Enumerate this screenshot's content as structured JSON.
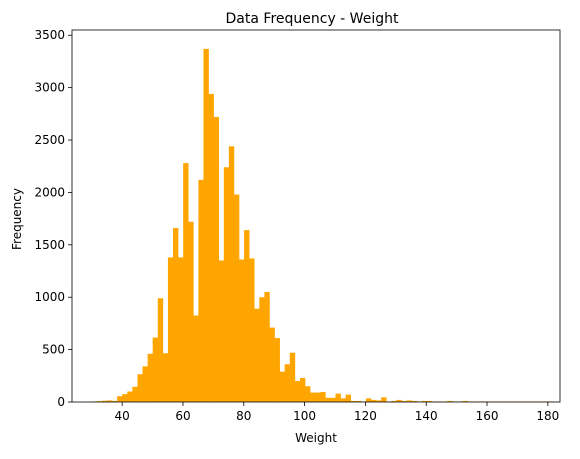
{
  "chart_data": {
    "type": "bar",
    "subtype": "histogram",
    "title": "Data Frequency - Weight",
    "xlabel": "Weight",
    "ylabel": "Frequency",
    "xlim": [
      23.5,
      184
    ],
    "ylim": [
      0,
      3550
    ],
    "xticks": [
      40,
      60,
      80,
      100,
      120,
      140,
      160,
      180
    ],
    "yticks": [
      0,
      500,
      1000,
      1500,
      2000,
      2500,
      3000,
      3500
    ],
    "bin_start": 30,
    "bin_width": 1.67,
    "bar_color": "#FFA500",
    "values": [
      5,
      8,
      12,
      15,
      10,
      55,
      75,
      100,
      145,
      265,
      340,
      460,
      615,
      990,
      465,
      1380,
      1660,
      1380,
      2280,
      1720,
      825,
      2120,
      3370,
      2940,
      2720,
      1350,
      2240,
      2440,
      1980,
      1360,
      1640,
      1370,
      890,
      1000,
      1050,
      710,
      610,
      290,
      360,
      470,
      200,
      230,
      150,
      90,
      90,
      95,
      40,
      40,
      80,
      35,
      70,
      10,
      10,
      5,
      35,
      20,
      15,
      45,
      5,
      10,
      20,
      10,
      15,
      10,
      5,
      10,
      10,
      5,
      5,
      5,
      10,
      5,
      5,
      10,
      5,
      5,
      5,
      5,
      5,
      5,
      5,
      5,
      5,
      5,
      5,
      5,
      5,
      5,
      5,
      5,
      5
    ]
  }
}
